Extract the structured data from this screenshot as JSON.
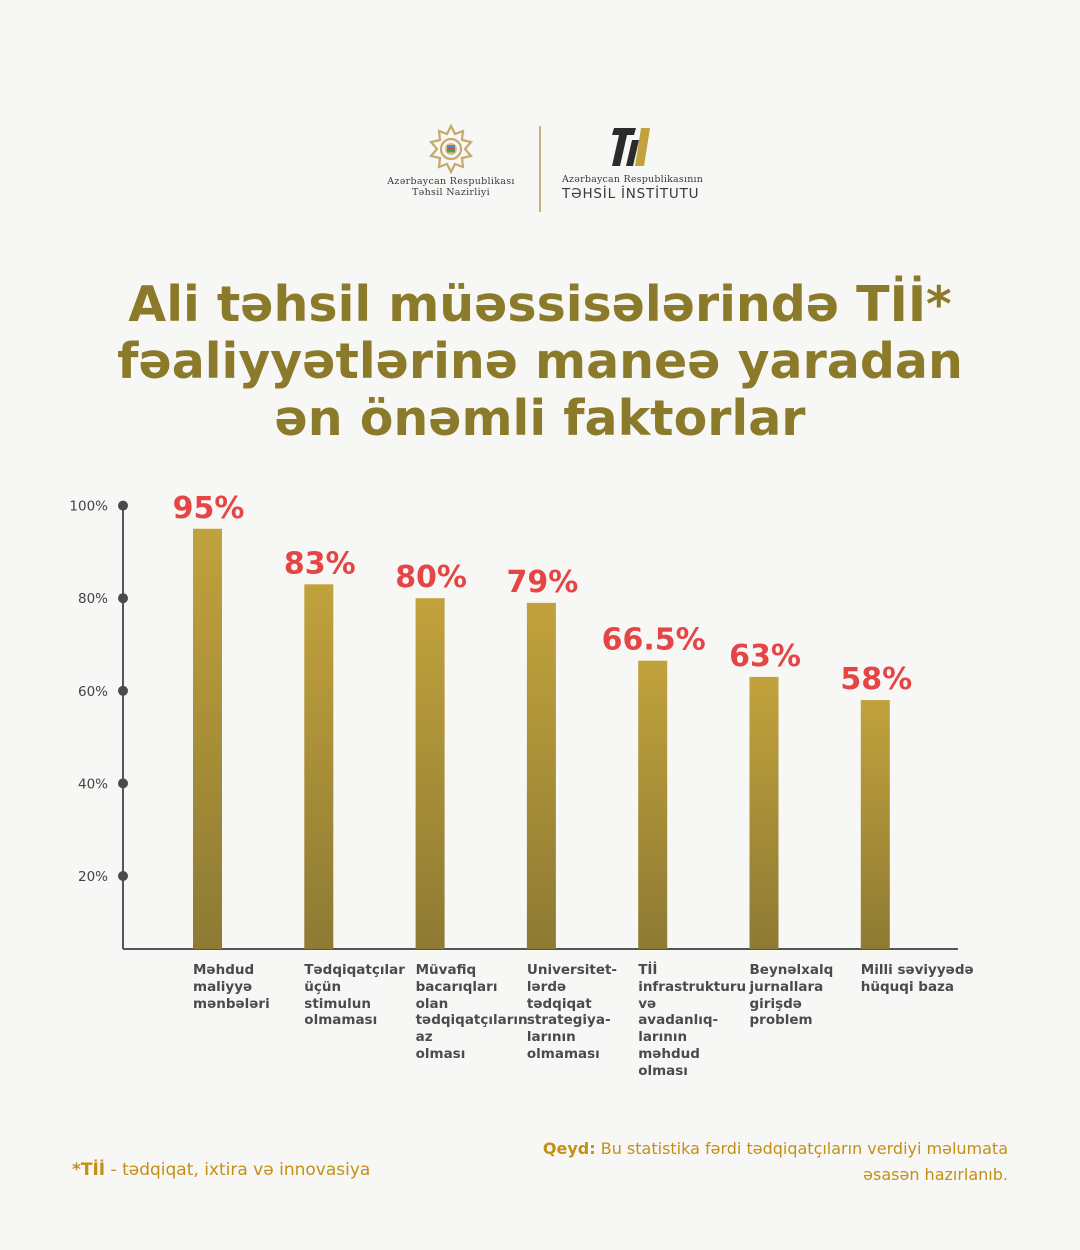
{
  "header": {
    "left_logo_line1": "Azərbaycan Respublikası",
    "left_logo_line2": "Təhsil Nazirliyi",
    "right_logo_line1": "Azərbaycan Respublikasının",
    "right_logo_line2": "TƏHSİL İNSTİTUTU"
  },
  "title_lines": [
    "Ali təhsil müəssisələrində Tİİ*",
    "fəaliyyətlərinə maneə yaradan",
    "ən önəmli faktorlar"
  ],
  "chart_data": {
    "type": "bar",
    "categories": [
      [
        "Məhdud",
        "maliyyə",
        "mənbələri"
      ],
      [
        "Tədqiqatçılar",
        "üçün",
        "stimulun",
        "olmaması"
      ],
      [
        "Müvafiq",
        "bacarıqları",
        "olan",
        "tədqiqatçıların",
        "az",
        "olması"
      ],
      [
        "Universitet-",
        "lərdə",
        "tədqiqat",
        "strategiya-",
        "larının",
        "olmaması"
      ],
      [
        "Tİİ",
        "infrastrukturu",
        "və",
        "avadanlıq-",
        "larının",
        "məhdud",
        "olması"
      ],
      [
        "Beynəlxalq",
        "jurnallara",
        "girişdə",
        "problem"
      ],
      [
        "Milli səviyyədə",
        "hüquqi baza"
      ]
    ],
    "values": [
      95,
      83,
      80,
      79,
      66.5,
      63,
      58
    ],
    "data_labels": [
      "95%",
      "83%",
      "80%",
      "79%",
      "66.5%",
      "63%",
      "58%"
    ],
    "y_ticks": [
      "100%",
      "80%",
      "60%",
      "40%",
      "20%"
    ],
    "y_tick_values": [
      100,
      80,
      60,
      40,
      20
    ],
    "ylim": [
      0,
      100
    ],
    "colors": {
      "bar_top": "#c1a23c",
      "bar_bottom": "#8e7a33",
      "value_label": "#e64545",
      "axis": "#555555"
    }
  },
  "footer": {
    "note_star": "*Tİİ",
    "note_text": " - tədqiqat, ixtira və innovasiya",
    "qeyd_label": "Qeyd:",
    "qeyd_text": " Bu statistika fərdi tədqiqatçıların verdiyi məlumata əsasən hazırlanıb."
  }
}
